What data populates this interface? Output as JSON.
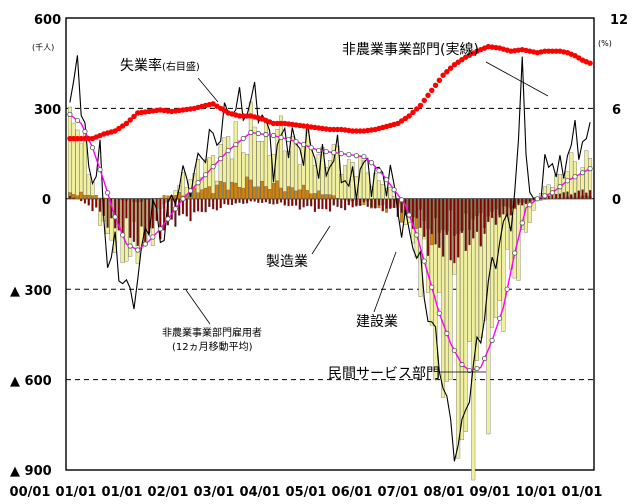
{
  "chart_data": {
    "type": "bar",
    "title": "",
    "x_tick_labels": [
      "00/01",
      "01/01",
      "01/01",
      "02/01",
      "03/01",
      "04/01",
      "05/01",
      "06/01",
      "07/01",
      "08/01",
      "09/01",
      "10/01",
      "01/01"
    ],
    "left_axis": {
      "ticks": [
        600,
        300,
        0,
        -300,
        -600,
        -900
      ],
      "tick_labels": [
        "600",
        "300",
        "0",
        "▲ 300",
        "▲ 600",
        "▲ 900"
      ],
      "unit": "(千人)",
      "ylim": [
        -900,
        600
      ]
    },
    "right_axis": {
      "ticks": [
        12,
        6,
        0
      ],
      "tick_labels": [
        "12",
        "6",
        "0"
      ],
      "unit": "(%)",
      "ylim": [
        0,
        12
      ]
    },
    "grid": "dashed at ±300, ±600",
    "annotations": {
      "unemployment": "失業率",
      "unemployment_note": "(右目盛)",
      "nonfarm_actual": "非農業事業部門(実線)",
      "manufacturing": "製造業",
      "construction": "建設業",
      "nonfarm_ma_line1": "非農業事業部門雇用者",
      "nonfarm_ma_line2": "(12ヵ月移動平均)",
      "private_services": "民間サービス部門"
    },
    "months_per_tick": 12,
    "series": [
      {
        "name": "民間サービス部門",
        "color": "#f0f0a0",
        "style": "bar",
        "anchors": [
          [
            0,
            200
          ],
          [
            2,
            280
          ],
          [
            6,
            60
          ],
          [
            9,
            -120
          ],
          [
            13,
            -160
          ],
          [
            18,
            -180
          ],
          [
            21,
            -130
          ],
          [
            24,
            -40
          ],
          [
            30,
            60
          ],
          [
            36,
            110
          ],
          [
            42,
            180
          ],
          [
            48,
            220
          ],
          [
            54,
            200
          ],
          [
            60,
            180
          ],
          [
            66,
            150
          ],
          [
            72,
            130
          ],
          [
            78,
            100
          ],
          [
            84,
            40
          ],
          [
            88,
            -20
          ],
          [
            92,
            -180
          ],
          [
            96,
            -400
          ],
          [
            100,
            -560
          ],
          [
            104,
            -700
          ],
          [
            108,
            -650
          ],
          [
            112,
            -450
          ],
          [
            116,
            -300
          ],
          [
            120,
            -150
          ],
          [
            124,
            0
          ],
          [
            128,
            60
          ],
          [
            132,
            100
          ],
          [
            136,
            120
          ],
          [
            138,
            150
          ]
        ]
      },
      {
        "name": "製造業",
        "color": "#8b0000",
        "style": "bar",
        "anchors": [
          [
            0,
            10
          ],
          [
            2,
            0
          ],
          [
            6,
            -30
          ],
          [
            10,
            -70
          ],
          [
            14,
            -110
          ],
          [
            18,
            -130
          ],
          [
            22,
            -110
          ],
          [
            26,
            -90
          ],
          [
            30,
            -60
          ],
          [
            36,
            -40
          ],
          [
            42,
            -20
          ],
          [
            48,
            -10
          ],
          [
            54,
            -15
          ],
          [
            60,
            -25
          ],
          [
            66,
            -35
          ],
          [
            72,
            -30
          ],
          [
            78,
            -20
          ],
          [
            84,
            -35
          ],
          [
            88,
            -45
          ],
          [
            92,
            -90
          ],
          [
            96,
            -150
          ],
          [
            100,
            -180
          ],
          [
            104,
            -170
          ],
          [
            108,
            -130
          ],
          [
            112,
            -80
          ],
          [
            116,
            -50
          ],
          [
            120,
            -20
          ],
          [
            124,
            0
          ],
          [
            128,
            15
          ],
          [
            132,
            20
          ],
          [
            136,
            25
          ],
          [
            138,
            25
          ]
        ]
      },
      {
        "name": "建設業",
        "color": "#e08000",
        "style": "bar",
        "anchors": [
          [
            0,
            20
          ],
          [
            4,
            15
          ],
          [
            8,
            5
          ],
          [
            12,
            0
          ],
          [
            18,
            -10
          ],
          [
            22,
            0
          ],
          [
            26,
            10
          ],
          [
            32,
            20
          ],
          [
            38,
            40
          ],
          [
            44,
            50
          ],
          [
            50,
            50
          ],
          [
            56,
            40
          ],
          [
            62,
            30
          ],
          [
            68,
            15
          ],
          [
            72,
            0
          ],
          [
            76,
            -15
          ],
          [
            80,
            -25
          ],
          [
            84,
            -30
          ],
          [
            88,
            -50
          ],
          [
            92,
            -70
          ],
          [
            96,
            -100
          ],
          [
            100,
            -100
          ],
          [
            104,
            -90
          ],
          [
            108,
            -70
          ],
          [
            112,
            -50
          ],
          [
            116,
            -30
          ],
          [
            120,
            -15
          ],
          [
            124,
            -5
          ],
          [
            128,
            0
          ],
          [
            132,
            5
          ],
          [
            136,
            8
          ],
          [
            138,
            10
          ]
        ]
      },
      {
        "name": "非農業事業部門(実線)",
        "color": "#000000",
        "style": "line",
        "anchors": [
          [
            0,
            250
          ],
          [
            2,
            470
          ],
          [
            4,
            200
          ],
          [
            6,
            80
          ],
          [
            8,
            100
          ],
          [
            10,
            -200
          ],
          [
            12,
            -150
          ],
          [
            14,
            -280
          ],
          [
            16,
            -350
          ],
          [
            18,
            -250
          ],
          [
            20,
            -100
          ],
          [
            22,
            -50
          ],
          [
            24,
            -120
          ],
          [
            26,
            -30
          ],
          [
            30,
            50
          ],
          [
            32,
            80
          ],
          [
            36,
            150
          ],
          [
            40,
            250
          ],
          [
            44,
            300
          ],
          [
            48,
            330
          ],
          [
            52,
            250
          ],
          [
            54,
            150
          ],
          [
            58,
            200
          ],
          [
            62,
            180
          ],
          [
            66,
            120
          ],
          [
            70,
            130
          ],
          [
            74,
            60
          ],
          [
            78,
            80
          ],
          [
            82,
            100
          ],
          [
            86,
            20
          ],
          [
            88,
            -60
          ],
          [
            90,
            -100
          ],
          [
            92,
            -200
          ],
          [
            94,
            -300
          ],
          [
            96,
            -400
          ],
          [
            98,
            -550
          ],
          [
            100,
            -700
          ],
          [
            102,
            -800
          ],
          [
            104,
            -780
          ],
          [
            106,
            -650
          ],
          [
            108,
            -500
          ],
          [
            110,
            -350
          ],
          [
            112,
            -250
          ],
          [
            114,
            -150
          ],
          [
            116,
            -50
          ],
          [
            118,
            0
          ],
          [
            119,
            150
          ],
          [
            120,
            450
          ],
          [
            121,
            200
          ],
          [
            122,
            -20
          ],
          [
            124,
            40
          ],
          [
            126,
            60
          ],
          [
            128,
            130
          ],
          [
            130,
            90
          ],
          [
            132,
            160
          ],
          [
            134,
            170
          ],
          [
            136,
            200
          ],
          [
            138,
            220
          ]
        ]
      },
      {
        "name": "非農業事業部門雇用者 (12ヵ月移動平均)",
        "color": "#ff00ff",
        "style": "line-markers",
        "anchors": [
          [
            0,
            280
          ],
          [
            3,
            250
          ],
          [
            6,
            170
          ],
          [
            9,
            60
          ],
          [
            12,
            -60
          ],
          [
            15,
            -150
          ],
          [
            18,
            -170
          ],
          [
            21,
            -140
          ],
          [
            24,
            -100
          ],
          [
            27,
            -50
          ],
          [
            30,
            0
          ],
          [
            36,
            80
          ],
          [
            42,
            160
          ],
          [
            48,
            220
          ],
          [
            54,
            210
          ],
          [
            60,
            190
          ],
          [
            66,
            160
          ],
          [
            72,
            150
          ],
          [
            78,
            140
          ],
          [
            80,
            120
          ],
          [
            83,
            80
          ],
          [
            86,
            30
          ],
          [
            89,
            -20
          ],
          [
            92,
            -120
          ],
          [
            95,
            -250
          ],
          [
            98,
            -380
          ],
          [
            101,
            -480
          ],
          [
            104,
            -550
          ],
          [
            106,
            -570
          ],
          [
            109,
            -560
          ],
          [
            112,
            -470
          ],
          [
            115,
            -360
          ],
          [
            118,
            -180
          ],
          [
            121,
            -30
          ],
          [
            124,
            0
          ],
          [
            128,
            20
          ],
          [
            132,
            60
          ],
          [
            135,
            80
          ],
          [
            138,
            100
          ]
        ]
      },
      {
        "name": "失業率",
        "color": "#ff0000",
        "style": "dots",
        "axis": "right",
        "anchors": [
          [
            0,
            4.0
          ],
          [
            3,
            4.0
          ],
          [
            6,
            4.0
          ],
          [
            9,
            4.3
          ],
          [
            12,
            4.5
          ],
          [
            15,
            5.0
          ],
          [
            18,
            5.7
          ],
          [
            21,
            5.8
          ],
          [
            24,
            5.9
          ],
          [
            27,
            5.8
          ],
          [
            30,
            5.9
          ],
          [
            33,
            6.0
          ],
          [
            36,
            6.2
          ],
          [
            38,
            6.3
          ],
          [
            40,
            6.0
          ],
          [
            42,
            5.7
          ],
          [
            45,
            5.5
          ],
          [
            48,
            5.5
          ],
          [
            51,
            5.3
          ],
          [
            54,
            5.0
          ],
          [
            57,
            5.0
          ],
          [
            60,
            4.9
          ],
          [
            63,
            4.8
          ],
          [
            66,
            4.7
          ],
          [
            69,
            4.6
          ],
          [
            72,
            4.6
          ],
          [
            75,
            4.5
          ],
          [
            78,
            4.5
          ],
          [
            81,
            4.6
          ],
          [
            84,
            4.8
          ],
          [
            87,
            5.0
          ],
          [
            90,
            5.5
          ],
          [
            93,
            6.2
          ],
          [
            96,
            7.2
          ],
          [
            99,
            8.2
          ],
          [
            102,
            8.9
          ],
          [
            105,
            9.4
          ],
          [
            108,
            9.8
          ],
          [
            111,
            10.1
          ],
          [
            114,
            10.0
          ],
          [
            117,
            9.8
          ],
          [
            120,
            9.9
          ],
          [
            122,
            9.8
          ],
          [
            124,
            9.7
          ],
          [
            126,
            9.8
          ],
          [
            128,
            9.8
          ],
          [
            130,
            9.8
          ],
          [
            132,
            9.7
          ],
          [
            134,
            9.5
          ],
          [
            136,
            9.2
          ],
          [
            138,
            9.0
          ]
        ]
      }
    ]
  }
}
